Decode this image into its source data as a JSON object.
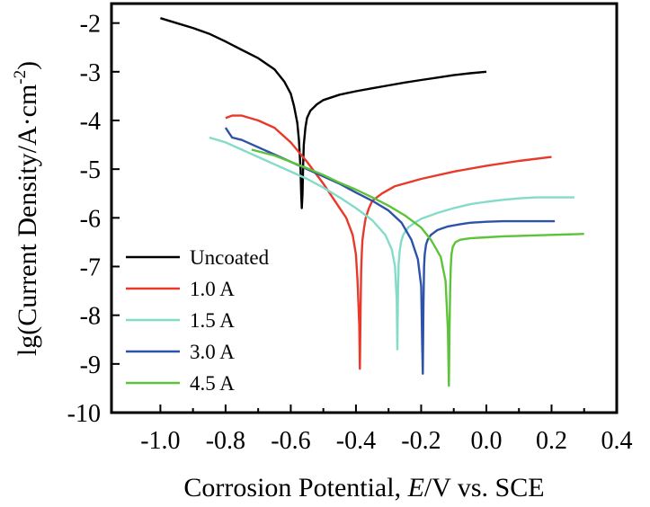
{
  "chart_data": {
    "type": "line",
    "xlabel": "Corrosion Potential, E/V vs. SCE",
    "xlabel_parts": {
      "pre": "Corrosion Potential, ",
      "italic": "E",
      "post": "/V vs. SCE"
    },
    "ylabel": "lg(Current Density/A·cm-2)",
    "ylabel_parts": {
      "pre": "lg(Current Density/A·cm",
      "sup": "-2",
      "post": ")"
    },
    "xlim": [
      -1.15,
      0.4
    ],
    "ylim": [
      -10,
      -1.6
    ],
    "x_ticks": [
      -1.0,
      -0.8,
      -0.6,
      -0.4,
      -0.2,
      0.0,
      0.2,
      0.4
    ],
    "x_tick_labels": [
      "-1.0",
      "-0.8",
      "-0.6",
      "-0.4",
      "-0.2",
      "0.0",
      "0.2",
      "0.4"
    ],
    "y_ticks": [
      -10,
      -9,
      -8,
      -7,
      -6,
      -5,
      -4,
      -3,
      -2
    ],
    "y_tick_labels": [
      "-10",
      "-9",
      "-8",
      "-7",
      "-6",
      "-5",
      "-4",
      "-3",
      "-2"
    ],
    "grid": false,
    "legend_position": "bottom-left",
    "series": [
      {
        "name": "Uncoated",
        "color": "#000000",
        "x": [
          -1.0,
          -0.95,
          -0.9,
          -0.85,
          -0.8,
          -0.75,
          -0.7,
          -0.65,
          -0.62,
          -0.6,
          -0.59,
          -0.58,
          -0.575,
          -0.57,
          -0.568,
          -0.566,
          -0.564,
          -0.562,
          -0.56,
          -0.555,
          -0.55,
          -0.54,
          -0.52,
          -0.5,
          -0.45,
          -0.4,
          -0.35,
          -0.3,
          -0.25,
          -0.2,
          -0.15,
          -0.1,
          -0.05,
          0.0
        ],
        "y": [
          -1.9,
          -2.0,
          -2.1,
          -2.22,
          -2.38,
          -2.55,
          -2.72,
          -2.95,
          -3.2,
          -3.45,
          -3.7,
          -4.05,
          -4.4,
          -5.0,
          -5.5,
          -5.8,
          -5.5,
          -4.9,
          -4.5,
          -4.15,
          -3.95,
          -3.8,
          -3.67,
          -3.58,
          -3.47,
          -3.4,
          -3.34,
          -3.28,
          -3.22,
          -3.17,
          -3.12,
          -3.07,
          -3.03,
          -3.0
        ]
      },
      {
        "name": "1.0 A",
        "color": "#e8392a",
        "x": [
          -0.8,
          -0.78,
          -0.75,
          -0.7,
          -0.65,
          -0.6,
          -0.55,
          -0.5,
          -0.46,
          -0.43,
          -0.41,
          -0.4,
          -0.395,
          -0.39,
          -0.388,
          -0.386,
          -0.384,
          -0.382,
          -0.38,
          -0.375,
          -0.37,
          -0.36,
          -0.35,
          -0.32,
          -0.28,
          -0.2,
          -0.1,
          0.0,
          0.1,
          0.2
        ],
        "y": [
          -3.95,
          -3.9,
          -3.9,
          -4.0,
          -4.15,
          -4.45,
          -4.85,
          -5.3,
          -5.7,
          -6.0,
          -6.35,
          -6.75,
          -7.3,
          -8.2,
          -9.1,
          -8.0,
          -7.1,
          -6.7,
          -6.45,
          -6.2,
          -6.0,
          -5.8,
          -5.65,
          -5.5,
          -5.35,
          -5.2,
          -5.05,
          -4.93,
          -4.83,
          -4.75
        ]
      },
      {
        "name": "1.5 A",
        "color": "#84dcc8",
        "x": [
          -0.85,
          -0.8,
          -0.75,
          -0.7,
          -0.65,
          -0.6,
          -0.55,
          -0.5,
          -0.45,
          -0.4,
          -0.35,
          -0.31,
          -0.29,
          -0.28,
          -0.275,
          -0.273,
          -0.271,
          -0.269,
          -0.266,
          -0.262,
          -0.255,
          -0.24,
          -0.22,
          -0.2,
          -0.15,
          -0.1,
          -0.05,
          0.0,
          0.05,
          0.1,
          0.15,
          0.2,
          0.27
        ],
        "y": [
          -4.35,
          -4.45,
          -4.6,
          -4.75,
          -4.9,
          -5.05,
          -5.2,
          -5.38,
          -5.58,
          -5.8,
          -6.05,
          -6.35,
          -6.65,
          -7.0,
          -7.7,
          -8.7,
          -7.5,
          -6.95,
          -6.7,
          -6.5,
          -6.35,
          -6.2,
          -6.1,
          -6.02,
          -5.9,
          -5.8,
          -5.72,
          -5.67,
          -5.63,
          -5.6,
          -5.58,
          -5.58,
          -5.58
        ]
      },
      {
        "name": "3.0 A",
        "color": "#2d52a8",
        "x": [
          -0.8,
          -0.78,
          -0.75,
          -0.7,
          -0.65,
          -0.6,
          -0.55,
          -0.5,
          -0.45,
          -0.4,
          -0.35,
          -0.3,
          -0.26,
          -0.23,
          -0.21,
          -0.2,
          -0.197,
          -0.195,
          -0.193,
          -0.191,
          -0.189,
          -0.185,
          -0.18,
          -0.17,
          -0.15,
          -0.12,
          -0.08,
          -0.05,
          0.0,
          0.05,
          0.1,
          0.15,
          0.21
        ],
        "y": [
          -4.15,
          -4.35,
          -4.4,
          -4.55,
          -4.7,
          -4.85,
          -5.0,
          -5.15,
          -5.3,
          -5.48,
          -5.65,
          -5.85,
          -6.1,
          -6.45,
          -6.85,
          -7.4,
          -8.5,
          -9.2,
          -7.8,
          -7.0,
          -6.75,
          -6.55,
          -6.45,
          -6.35,
          -6.25,
          -6.18,
          -6.13,
          -6.1,
          -6.08,
          -6.07,
          -6.07,
          -6.07,
          -6.07
        ]
      },
      {
        "name": "4.5 A",
        "color": "#5cc33a",
        "x": [
          -0.72,
          -0.65,
          -0.6,
          -0.55,
          -0.5,
          -0.45,
          -0.4,
          -0.35,
          -0.3,
          -0.25,
          -0.2,
          -0.17,
          -0.14,
          -0.125,
          -0.118,
          -0.115,
          -0.113,
          -0.111,
          -0.109,
          -0.107,
          -0.103,
          -0.095,
          -0.08,
          -0.05,
          0.0,
          0.05,
          0.1,
          0.15,
          0.2,
          0.3
        ],
        "y": [
          -4.6,
          -4.72,
          -4.85,
          -4.98,
          -5.12,
          -5.28,
          -5.42,
          -5.58,
          -5.75,
          -5.95,
          -6.2,
          -6.45,
          -6.8,
          -7.3,
          -8.3,
          -9.45,
          -8.3,
          -7.5,
          -7.0,
          -6.75,
          -6.6,
          -6.5,
          -6.45,
          -6.42,
          -6.4,
          -6.38,
          -6.37,
          -6.36,
          -6.35,
          -6.33
        ]
      }
    ]
  }
}
